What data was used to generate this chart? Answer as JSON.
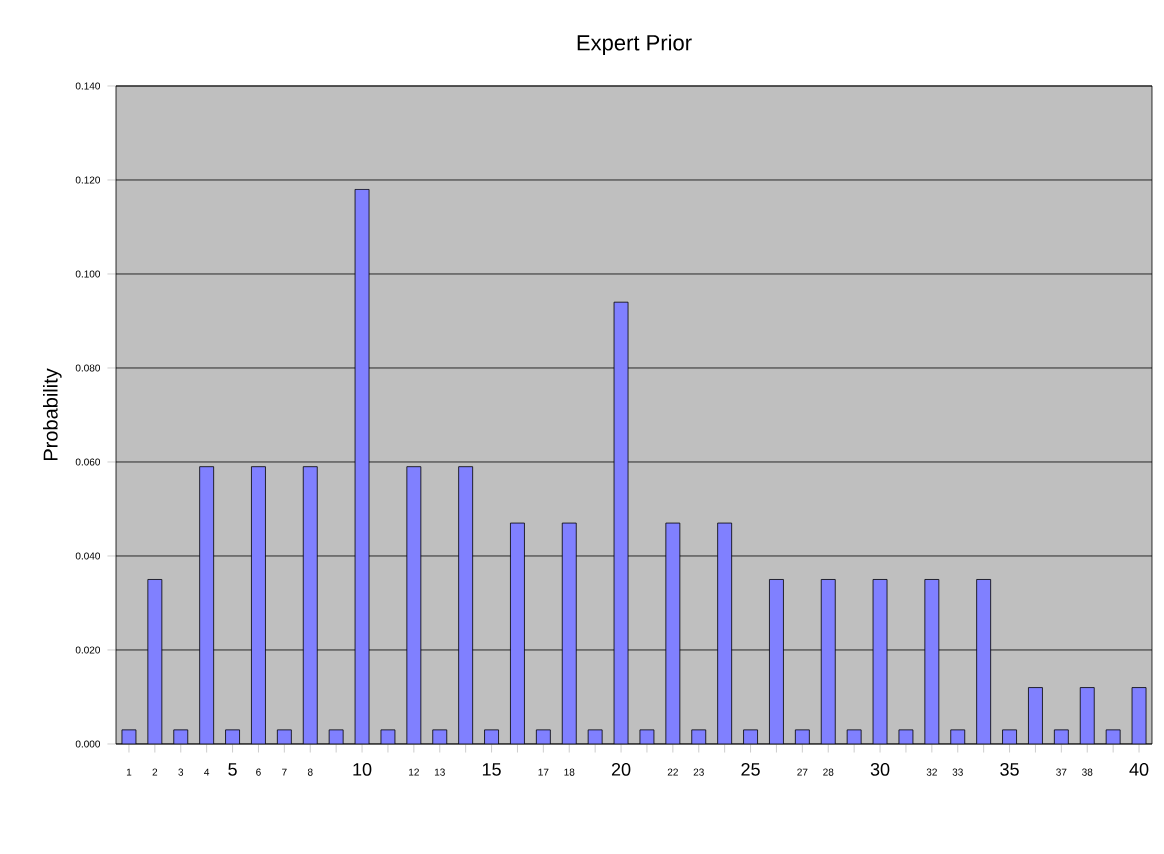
{
  "chart_data": {
    "type": "bar",
    "title": "Expert Prior",
    "ylabel": "Probability",
    "categories": [
      "1",
      "2",
      "3",
      "4",
      "5",
      "6",
      "7",
      "8",
      null,
      "10",
      null,
      "12",
      "13",
      null,
      "15",
      null,
      "17",
      "18",
      null,
      "20",
      null,
      "22",
      "23",
      null,
      "25",
      null,
      "27",
      "28",
      null,
      "30",
      null,
      "32",
      "33",
      null,
      "35",
      null,
      "37",
      "38",
      null,
      "40"
    ],
    "values": [
      0.003,
      0.035,
      0.003,
      0.059,
      0.003,
      0.059,
      0.003,
      0.059,
      0.003,
      0.118,
      0.003,
      0.059,
      0.003,
      0.059,
      0.003,
      0.047,
      0.003,
      0.047,
      0.003,
      0.094,
      0.003,
      0.047,
      0.003,
      0.047,
      0.003,
      0.035,
      0.003,
      0.035,
      0.003,
      0.035,
      0.003,
      0.035,
      0.003,
      0.035,
      0.003,
      0.012,
      0.003,
      0.012,
      0.003,
      0.012
    ],
    "color": "#8080ff",
    "ylim": [
      0,
      0.14
    ],
    "yticks": [
      {
        "value": 0,
        "label": "0.000"
      },
      {
        "value": 0.02,
        "label": "0.020"
      },
      {
        "value": 0.04,
        "label": "0.040"
      },
      {
        "value": 0.06,
        "label": "0.060"
      },
      {
        "value": 0.08,
        "label": "0.080"
      },
      {
        "value": 0.1,
        "label": "0.100"
      },
      {
        "value": 0.12,
        "label": "0.120"
      },
      {
        "value": 0.14,
        "label": "0.140"
      }
    ],
    "grid": "y"
  }
}
